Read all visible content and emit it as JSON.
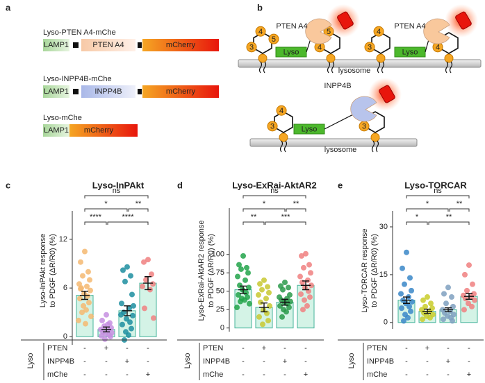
{
  "panel_a": {
    "label": "a",
    "constructs": [
      {
        "name": "Lyso-PTEN A4-mChe",
        "parts": [
          "LAMP1",
          "PTEN A4",
          "mCherry"
        ]
      },
      {
        "name": "Lyso-INPP4B-mChe",
        "parts": [
          "LAMP1",
          "INPP4B",
          "mCherry"
        ]
      },
      {
        "name": "Lyso-mChe",
        "parts": [
          "LAMP1",
          "mCherry"
        ]
      }
    ]
  },
  "panel_b": {
    "label": "b",
    "membranes": [
      "lysosome",
      "lysosome"
    ],
    "units": [
      {
        "substrate": [
          "3",
          "4",
          "5"
        ],
        "tag": "Lyso",
        "enzyme": "PTEN A4",
        "product": [
          "4",
          "5"
        ]
      },
      {
        "substrate": [
          "3",
          "4"
        ],
        "tag": "Lyso",
        "enzyme": "PTEN A4",
        "product": [
          "4"
        ]
      },
      {
        "substrate": [
          "3",
          "4"
        ],
        "tag": "Lyso",
        "enzyme": "INPP4B",
        "product": [
          "3"
        ]
      }
    ]
  },
  "chart_data": [
    {
      "type": "bar",
      "panel": "c",
      "title": "Lyso-InPAkt",
      "y_label": [
        "Lyso-InPAkt response",
        "to PDGF (ΔR/R0) (%)"
      ],
      "ylim": [
        -1,
        15.5
      ],
      "yticks": [
        0,
        6,
        12
      ],
      "bar_color": "#d4f3e6",
      "bar_edge": "#44b39a",
      "groups": [
        {
          "color": "#f5b971",
          "mean": 5.1,
          "error": 0.5,
          "points": [
            10.5,
            9.2,
            8.0,
            7.5,
            7.0,
            6.5,
            6.2,
            6.0,
            5.7,
            5.3,
            5.0,
            4.7,
            4.2,
            3.8,
            3.3,
            3.0,
            2.5,
            2.0,
            1.6,
            5.9
          ]
        },
        {
          "color": "#c58fe0",
          "mean": 0.9,
          "error": 0.3,
          "points": [
            2.7,
            2.0,
            1.7,
            1.3,
            1.1,
            0.9,
            0.8,
            0.6,
            0.5,
            0.4,
            0.2,
            0.1,
            0.0,
            -0.3,
            1.5
          ]
        },
        {
          "color": "#1d8ea0",
          "mean": 3.2,
          "error": 0.6,
          "points": [
            8.6,
            8.2,
            7.5,
            6.8,
            5.2,
            4.1,
            3.5,
            3.0,
            2.6,
            2.2,
            1.8,
            1.5,
            1.0,
            0.6,
            0.2,
            -0.4,
            3.8,
            2.7
          ]
        },
        {
          "color": "#f08080",
          "mean": 6.6,
          "error": 0.8,
          "points": [
            9.5,
            9.2,
            7.7,
            7.0,
            6.5,
            6.2,
            5.8,
            3.5,
            2.3
          ]
        }
      ],
      "brackets": [
        {
          "label": "ns",
          "from": 0,
          "to": 3
        },
        {
          "label": "*",
          "from": 0,
          "to": 2
        },
        {
          "label": "**",
          "from": 2,
          "to": 3
        },
        {
          "label": "****",
          "from": 0,
          "to": 1
        },
        {
          "label": "****",
          "from": 1,
          "to": 3
        }
      ],
      "conditions": {
        "group_label": "Lyso",
        "rows": [
          {
            "name": "PTEN",
            "marks": [
              "-",
              "+",
              "-",
              "-"
            ]
          },
          {
            "name": "INPP4B",
            "marks": [
              "-",
              "-",
              "+",
              "-"
            ]
          },
          {
            "name": "mChe",
            "marks": [
              "-",
              "-",
              "-",
              "+"
            ]
          }
        ]
      }
    },
    {
      "type": "bar",
      "panel": "d",
      "title": "Lyso-ExRai-AktAR2",
      "y_label": [
        "Lyso-ExRai-AktAR2 response",
        "to PDGF (ΔR/R0) (%)"
      ],
      "ylim": [
        -5,
        163
      ],
      "yticks": [
        0,
        25,
        50,
        75,
        100
      ],
      "bar_color": "#d4f3e6",
      "bar_edge": "#44b39a",
      "groups": [
        {
          "color": "#22a34a",
          "mean": 52,
          "error": 5,
          "points": [
            98,
            86,
            82,
            80,
            75,
            70,
            65,
            58,
            55,
            52,
            48,
            45,
            42,
            40,
            38,
            36,
            33,
            28
          ]
        },
        {
          "color": "#c8c830",
          "mean": 28,
          "error": 6,
          "points": [
            65,
            60,
            56,
            52,
            48,
            45,
            40,
            35,
            30,
            25,
            20,
            15,
            10,
            5
          ]
        },
        {
          "color": "#2a9a4a",
          "mean": 35,
          "error": 4,
          "points": [
            62,
            57,
            55,
            52,
            45,
            42,
            40,
            38,
            36,
            35,
            33,
            30,
            28,
            25,
            22,
            15
          ]
        },
        {
          "color": "#f08080",
          "mean": 58,
          "error": 6,
          "points": [
            101,
            98,
            86,
            82,
            75,
            70,
            65,
            62,
            58,
            55,
            50,
            46,
            42,
            38,
            30,
            25
          ]
        }
      ],
      "brackets": [
        {
          "label": "ns",
          "from": 0,
          "to": 3
        },
        {
          "label": "*",
          "from": 0,
          "to": 2
        },
        {
          "label": "**",
          "from": 2,
          "to": 3
        },
        {
          "label": "**",
          "from": 0,
          "to": 1
        },
        {
          "label": "***",
          "from": 1,
          "to": 3
        }
      ],
      "conditions": {
        "group_label": "Lyso",
        "rows": [
          {
            "name": "PTEN",
            "marks": [
              "-",
              "+",
              "-",
              "-"
            ]
          },
          {
            "name": "INPP4B",
            "marks": [
              "-",
              "-",
              "+",
              "-"
            ]
          },
          {
            "name": "mChe",
            "marks": [
              "-",
              "-",
              "-",
              "+"
            ]
          }
        ]
      }
    },
    {
      "type": "bar",
      "panel": "e",
      "title": "Lyso-TORCAR",
      "y_label": [
        "Lyso-TORCAR response",
        "to PDGF (ΔR/R0) (%)"
      ],
      "ylim": [
        -2,
        35
      ],
      "yticks": [
        0,
        15,
        30
      ],
      "bar_color": "#d4f3e6",
      "bar_edge": "#44b39a",
      "groups": [
        {
          "color": "#3a87c8",
          "mean": 7,
          "error": 1,
          "points": [
            22,
            17,
            14,
            12,
            10,
            9,
            8,
            7,
            6.5,
            6,
            5,
            4.5,
            3.5,
            2.5,
            1.5,
            0.5
          ]
        },
        {
          "color": "#c9cc2a",
          "mean": 3.5,
          "error": 0.7,
          "points": [
            8,
            7,
            6,
            5,
            4.5,
            4,
            3.5,
            3,
            2.5,
            2,
            1.5,
            1
          ]
        },
        {
          "color": "#7fa0c0",
          "mean": 4,
          "error": 0.6,
          "points": [
            11,
            9,
            8,
            6,
            5,
            4,
            3.5,
            3,
            2.5,
            2,
            1.5,
            1,
            0.5
          ]
        },
        {
          "color": "#f08080",
          "mean": 8.2,
          "error": 0.9,
          "points": [
            18,
            15,
            12,
            10,
            9,
            8.5,
            8,
            7.5,
            7,
            6,
            5,
            4
          ]
        }
      ],
      "brackets": [
        {
          "label": "ns",
          "from": 0,
          "to": 3
        },
        {
          "label": "*",
          "from": 0,
          "to": 2
        },
        {
          "label": "**",
          "from": 2,
          "to": 3
        },
        {
          "label": "*",
          "from": 0,
          "to": 1
        },
        {
          "label": "**",
          "from": 1,
          "to": 3
        }
      ],
      "conditions": {
        "group_label": "Lyso",
        "rows": [
          {
            "name": "PTEN",
            "marks": [
              "-",
              "+",
              "-",
              "-"
            ]
          },
          {
            "name": "INPP4B",
            "marks": [
              "-",
              "-",
              "+",
              "-"
            ]
          },
          {
            "name": "mChe",
            "marks": [
              "-",
              "-",
              "-",
              "+"
            ]
          }
        ]
      }
    }
  ]
}
